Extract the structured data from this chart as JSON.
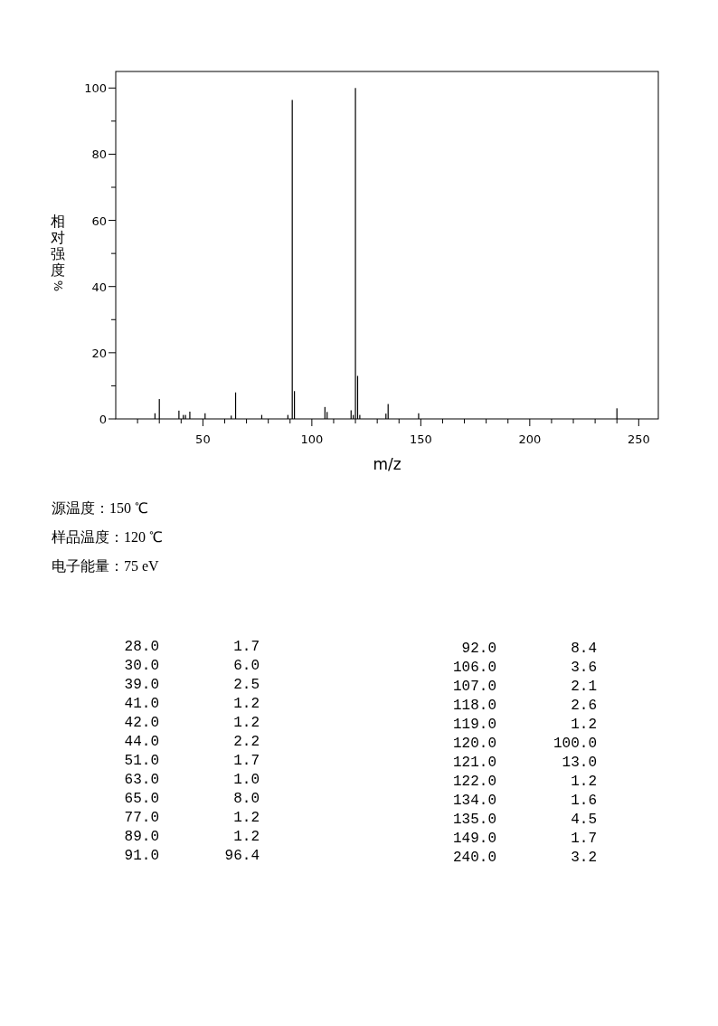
{
  "chart_data": [
    {
      "type": "bar",
      "ylabel": "相对强度%",
      "xlabel": "m/z",
      "x": [
        28,
        30,
        39,
        41,
        42,
        44,
        51,
        63,
        65,
        77,
        89,
        91,
        92,
        106,
        107,
        118,
        119,
        120,
        121,
        122,
        134,
        135,
        149,
        240
      ],
      "values": [
        1.7,
        6.0,
        2.5,
        1.2,
        1.2,
        2.2,
        1.7,
        1.0,
        8.0,
        1.2,
        1.2,
        96.4,
        8.4,
        3.6,
        2.1,
        2.6,
        1.2,
        100.0,
        13.0,
        1.2,
        1.6,
        4.5,
        1.7,
        3.2
      ],
      "color": "#000000",
      "xlim": [
        10,
        259
      ],
      "ylim": [
        0,
        105
      ],
      "xticks": [
        {
          "value": 20,
          "label": null
        },
        {
          "value": 30,
          "label": null
        },
        {
          "value": 40,
          "label": null
        },
        50,
        {
          "value": 60,
          "label": null
        },
        {
          "value": 70,
          "label": null
        },
        {
          "value": 80,
          "label": null
        },
        {
          "value": 90,
          "label": null
        },
        100,
        {
          "value": 110,
          "label": null
        },
        {
          "value": 120,
          "label": null
        },
        {
          "value": 130,
          "label": null
        },
        {
          "value": 140,
          "label": null
        },
        150,
        {
          "value": 160,
          "label": null
        },
        {
          "value": 170,
          "label": null
        },
        {
          "value": 180,
          "label": null
        },
        {
          "value": 190,
          "label": null
        },
        200,
        {
          "value": 210,
          "label": null
        },
        {
          "value": 220,
          "label": null
        },
        {
          "value": 230,
          "label": null
        },
        {
          "value": 240,
          "label": null
        },
        250
      ],
      "yticks": [
        0,
        {
          "value": 10,
          "label": null
        },
        20,
        {
          "value": 30,
          "label": null
        },
        40,
        {
          "value": 50,
          "label": null
        },
        60,
        {
          "value": 70,
          "label": null
        },
        80,
        {
          "value": 90,
          "label": null
        },
        100
      ],
      "grid": false,
      "annotations": [
        "源温度：150 ℃",
        "样品温度：120 ℃",
        "电子能量：75 eV"
      ]
    },
    {
      "type": "other",
      "annotations": [
        "28.0",
        "1.7",
        "30.0",
        "6.0",
        "39.0",
        "2.5",
        "41.0",
        "1.2",
        "42.0",
        "1.2",
        "44.0",
        "2.2",
        "51.0",
        "1.7",
        "63.0",
        "1.0",
        "65.0",
        "8.0",
        "77.0",
        "1.2",
        "89.0",
        "1.2",
        "91.0",
        "96.4",
        "92.0",
        "8.4",
        "106.0",
        "3.6",
        "107.0",
        "2.1",
        "118.0",
        "2.6",
        "119.0",
        "1.2",
        "120.0",
        "100.0",
        "121.0",
        "13.0",
        "122.0",
        "1.2",
        "134.0",
        "1.6",
        "135.0",
        "4.5",
        "149.0",
        "1.7",
        "240.0",
        "3.2"
      ]
    }
  ]
}
